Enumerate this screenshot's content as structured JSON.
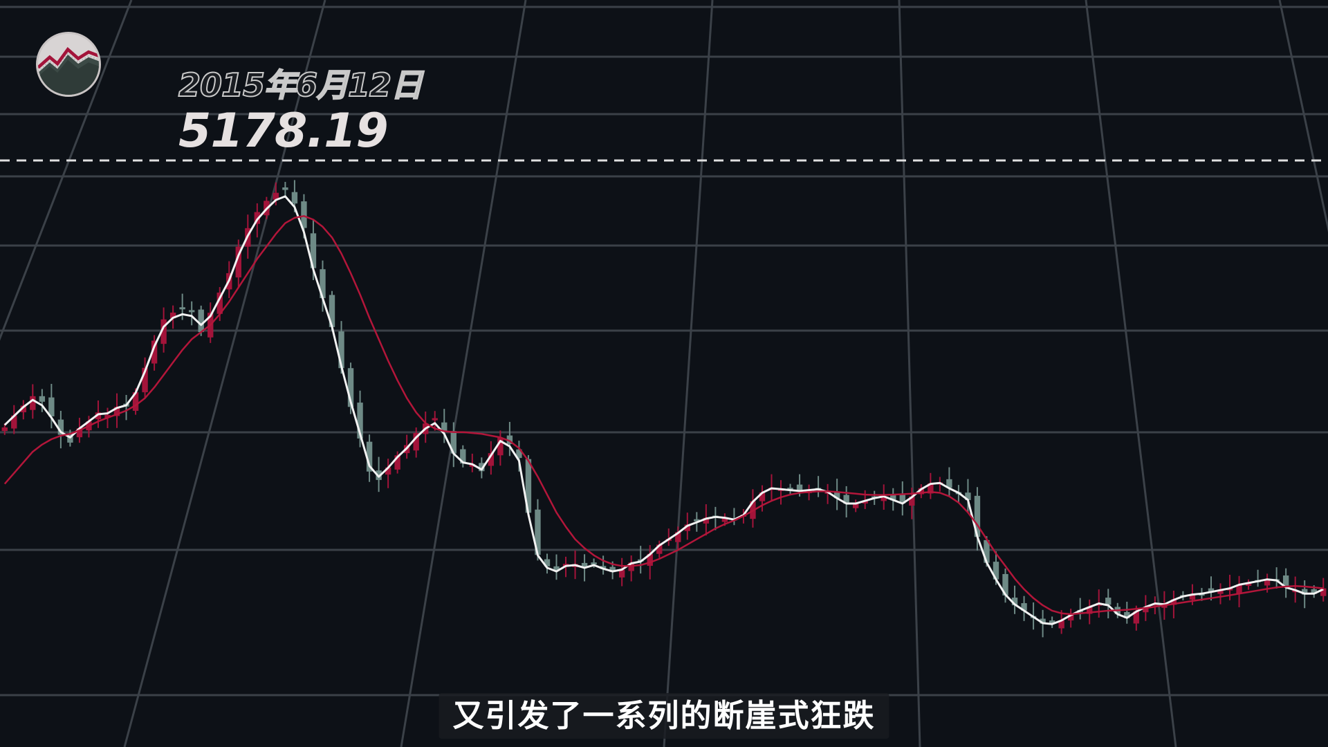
{
  "header": {
    "date_label": "2015年6月12日",
    "peak_value": "5178.19",
    "logo_icon": "mountain-logo-icon"
  },
  "subtitle": "又引发了一系列的断崖式狂跌",
  "colors": {
    "background": "#0d1117",
    "grid": "#3b4148",
    "candle_up": "#a3143a",
    "candle_down": "#6e8a86",
    "ma_short": "#f2f2f2",
    "ma_long": "#b3163a",
    "peak_line": "#e0e0e0"
  },
  "chart_data": {
    "type": "candlestick",
    "title": "",
    "xlabel": "",
    "ylabel": "",
    "grid": true,
    "legend": "none",
    "peak": {
      "label": "2015年6月12日",
      "value": 5178.19
    },
    "ylim": [
      2550,
      5300
    ],
    "close": [
      3836,
      3903,
      3958,
      4011,
      3980,
      3898,
      3795,
      3751,
      3832,
      3870,
      3920,
      3906,
      3951,
      3953,
      4033,
      4170,
      4322,
      4441,
      4479,
      4505,
      4484,
      4370,
      4478,
      4591,
      4700,
      4848,
      4952,
      5042,
      5105,
      5150,
      5166,
      5090,
      4953,
      4728,
      4560,
      4398,
      4168,
      3951,
      3774,
      3589,
      3542,
      3612,
      3680,
      3737,
      3805,
      3858,
      3888,
      3816,
      3690,
      3634,
      3631,
      3591,
      3692,
      3779,
      3743,
      3665,
      3358,
      3122,
      3058,
      3032,
      3072,
      3071,
      3050,
      3072,
      3043,
      3026,
      3038,
      3079,
      3085,
      3128,
      3180,
      3212,
      3250,
      3292,
      3310,
      3330,
      3337,
      3333,
      3320,
      3348,
      3423,
      3472,
      3498,
      3492,
      3486,
      3480,
      3485,
      3495,
      3479,
      3440,
      3408,
      3410,
      3426,
      3442,
      3450,
      3428,
      3410,
      3450,
      3496,
      3523,
      3528,
      3498,
      3471,
      3429,
      3223,
      3078,
      2985,
      2895,
      2840,
      2810,
      2771,
      2737,
      2735,
      2755,
      2790,
      2810,
      2832,
      2853,
      2843,
      2790,
      2768,
      2807,
      2830,
      2850,
      2843,
      2873,
      2890,
      2900,
      2905,
      2916,
      2923,
      2935,
      2955,
      2963,
      2975,
      2986,
      2983,
      2940,
      2925,
      2900,
      2904,
      2935
    ],
    "series": [
      {
        "name": "",
        "kind": "ma-short",
        "values": [
          3850,
          3900,
          3950,
          3990,
          3960,
          3890,
          3810,
          3780,
          3830,
          3870,
          3910,
          3915,
          3945,
          3960,
          4030,
          4150,
          4290,
          4400,
          4450,
          4470,
          4460,
          4410,
          4460,
          4560,
          4660,
          4800,
          4910,
          5000,
          5060,
          5110,
          5130,
          5070,
          4930,
          4720,
          4560,
          4400,
          4180,
          3980,
          3800,
          3620,
          3560,
          3610,
          3670,
          3720,
          3780,
          3830,
          3860,
          3800,
          3690,
          3640,
          3630,
          3600,
          3680,
          3760,
          3730,
          3650,
          3350,
          3120,
          3050,
          3030,
          3060,
          3065,
          3050,
          3065,
          3045,
          3030,
          3040,
          3075,
          3085,
          3125,
          3175,
          3210,
          3245,
          3285,
          3305,
          3325,
          3335,
          3330,
          3320,
          3345,
          3420,
          3470,
          3495,
          3490,
          3485,
          3480,
          3485,
          3490,
          3475,
          3440,
          3410,
          3410,
          3425,
          3440,
          3450,
          3430,
          3410,
          3445,
          3490,
          3520,
          3525,
          3495,
          3470,
          3430,
          3225,
          3080,
          2985,
          2900,
          2845,
          2810,
          2775,
          2740,
          2735,
          2755,
          2785,
          2810,
          2830,
          2850,
          2840,
          2790,
          2770,
          2805,
          2830,
          2850,
          2845,
          2870,
          2890,
          2900,
          2905,
          2915,
          2925,
          2935,
          2955,
          2965,
          2975,
          2985,
          2980,
          2940,
          2925,
          2905,
          2905,
          2930
        ]
      },
      {
        "name": "",
        "kind": "ma-long",
        "values": [
          3520,
          3580,
          3640,
          3700,
          3740,
          3770,
          3790,
          3800,
          3820,
          3845,
          3870,
          3890,
          3910,
          3930,
          3960,
          4000,
          4060,
          4130,
          4200,
          4270,
          4330,
          4370,
          4410,
          4470,
          4540,
          4620,
          4700,
          4780,
          4850,
          4920,
          4980,
          5010,
          5020,
          5000,
          4960,
          4900,
          4810,
          4700,
          4580,
          4450,
          4330,
          4210,
          4100,
          4000,
          3920,
          3860,
          3830,
          3815,
          3810,
          3810,
          3805,
          3800,
          3790,
          3780,
          3760,
          3720,
          3650,
          3560,
          3460,
          3360,
          3280,
          3210,
          3160,
          3120,
          3090,
          3070,
          3060,
          3060,
          3065,
          3080,
          3100,
          3125,
          3150,
          3180,
          3210,
          3240,
          3270,
          3295,
          3315,
          3340,
          3370,
          3400,
          3425,
          3445,
          3460,
          3470,
          3475,
          3478,
          3478,
          3475,
          3470,
          3465,
          3460,
          3458,
          3458,
          3460,
          3462,
          3465,
          3470,
          3475,
          3470,
          3450,
          3415,
          3360,
          3290,
          3210,
          3130,
          3060,
          2990,
          2930,
          2880,
          2840,
          2810,
          2795,
          2790,
          2795,
          2800,
          2805,
          2810,
          2812,
          2815,
          2820,
          2825,
          2832,
          2840,
          2848,
          2856,
          2864,
          2872,
          2880,
          2888,
          2896,
          2905,
          2914,
          2923,
          2932,
          2940,
          2945,
          2948,
          2945,
          2940,
          2935
        ]
      }
    ]
  }
}
